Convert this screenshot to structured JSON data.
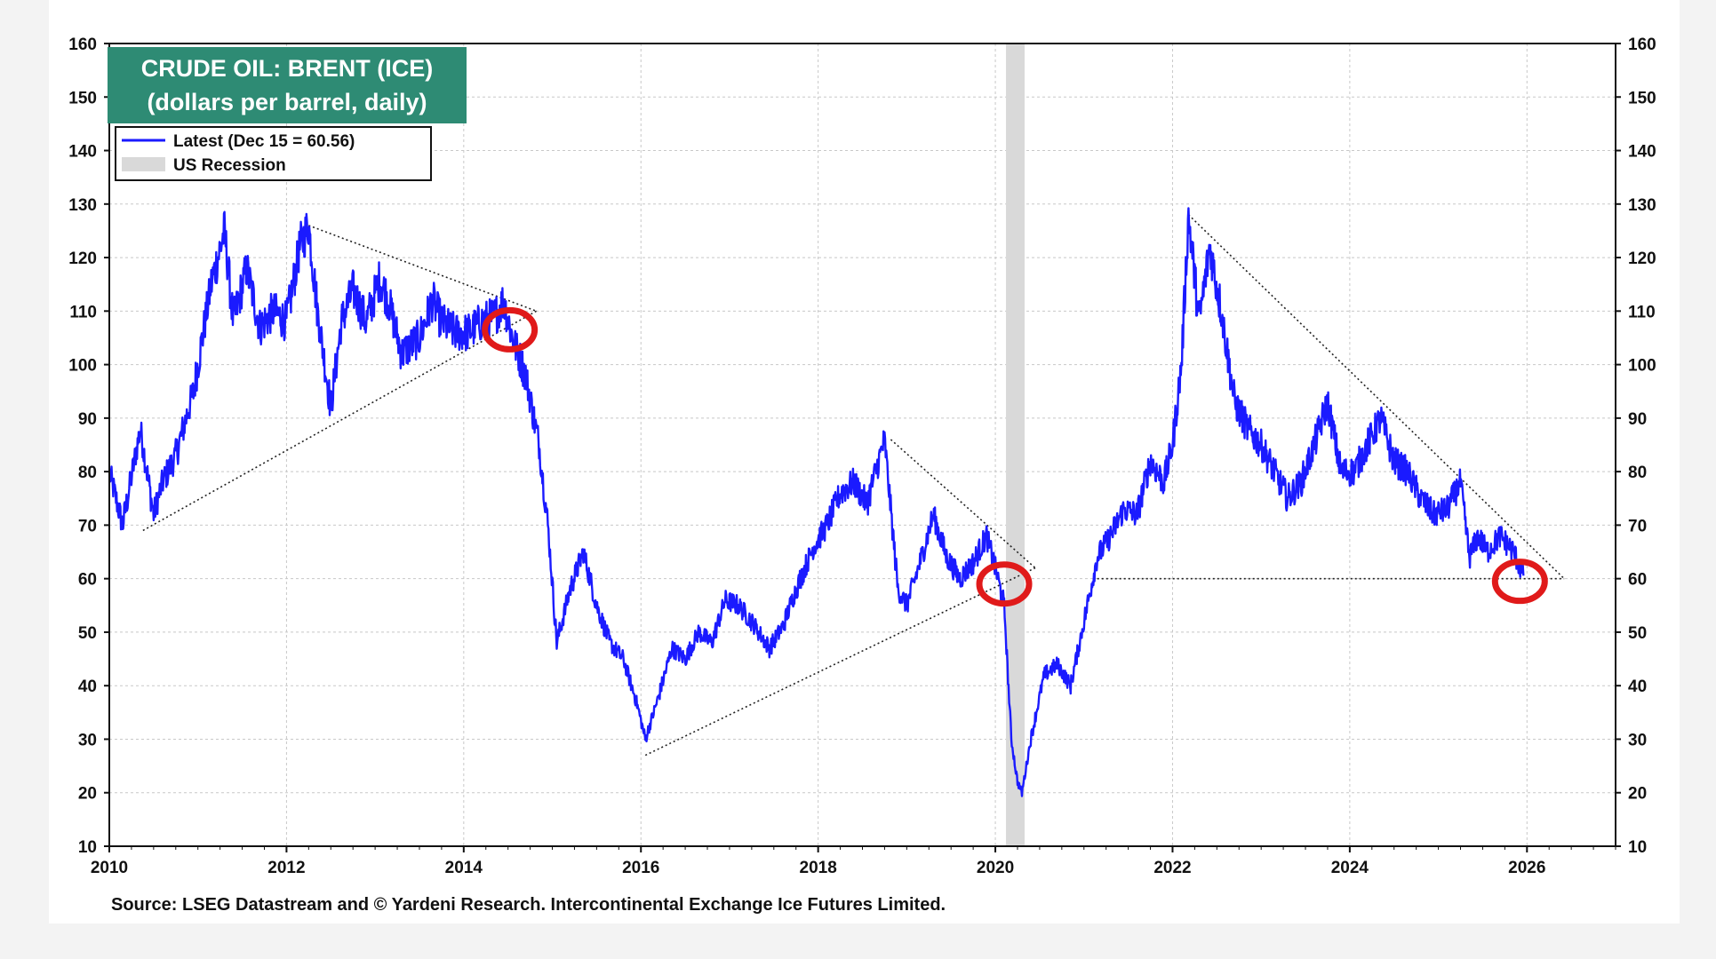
{
  "chart_data": {
    "type": "line",
    "title": "CRUDE OIL: BRENT (ICE)",
    "subtitle": "(dollars per barrel, daily)",
    "source": "Source: LSEG Datastream and © Yardeni Research. Intercontinental Exchange Ice Futures Limited.",
    "xlim": [
      2010,
      2027
    ],
    "ylim": [
      10,
      160
    ],
    "x_ticks": [
      "2010",
      "2012",
      "2014",
      "2016",
      "2018",
      "2020",
      "2022",
      "2024",
      "2026"
    ],
    "y_ticks": [
      "10",
      "20",
      "30",
      "40",
      "50",
      "60",
      "70",
      "80",
      "90",
      "100",
      "110",
      "120",
      "130",
      "140",
      "150",
      "160"
    ],
    "grid": true,
    "legend_position": "top-left",
    "legend": [
      {
        "label": "Latest (Dec 15 = 60.56)",
        "type": "line",
        "color": "#1a1aff"
      },
      {
        "label": "US Recession",
        "type": "band",
        "color": "#d9d9d9"
      }
    ],
    "title_box_color": "#2e8b74",
    "series": [
      {
        "name": "Latest (Dec 15 = 60.56)",
        "color": "#1a1aff",
        "x": [
          2010.0,
          2010.15,
          2010.35,
          2010.5,
          2010.6,
          2010.75,
          2010.95,
          2011.15,
          2011.3,
          2011.4,
          2011.55,
          2011.7,
          2011.85,
          2012.0,
          2012.15,
          2012.25,
          2012.35,
          2012.5,
          2012.62,
          2012.75,
          2012.9,
          2013.05,
          2013.15,
          2013.3,
          2013.5,
          2013.65,
          2013.75,
          2013.9,
          2014.05,
          2014.2,
          2014.35,
          2014.45,
          2014.55,
          2014.7,
          2014.85,
          2014.95,
          2015.05,
          2015.2,
          2015.35,
          2015.5,
          2015.65,
          2015.8,
          2015.95,
          2016.05,
          2016.2,
          2016.35,
          2016.5,
          2016.65,
          2016.8,
          2016.95,
          2017.1,
          2017.25,
          2017.45,
          2017.6,
          2017.75,
          2017.95,
          2018.1,
          2018.25,
          2018.4,
          2018.55,
          2018.75,
          2018.9,
          2019.0,
          2019.15,
          2019.3,
          2019.45,
          2019.6,
          2019.75,
          2019.9,
          2020.0,
          2020.1,
          2020.18,
          2020.25,
          2020.3,
          2020.4,
          2020.55,
          2020.7,
          2020.85,
          2021.0,
          2021.15,
          2021.3,
          2021.45,
          2021.6,
          2021.75,
          2021.9,
          2022.0,
          2022.1,
          2022.18,
          2022.3,
          2022.42,
          2022.55,
          2022.7,
          2022.85,
          2023.0,
          2023.15,
          2023.3,
          2023.45,
          2023.6,
          2023.75,
          2023.9,
          2024.05,
          2024.2,
          2024.35,
          2024.5,
          2024.65,
          2024.8,
          2024.95,
          2025.1,
          2025.25,
          2025.35,
          2025.45,
          2025.55,
          2025.7,
          2025.85,
          2025.96
        ],
        "y": [
          80,
          70,
          88,
          72,
          78,
          83,
          95,
          115,
          125,
          108,
          118,
          107,
          110,
          108,
          122,
          126,
          110,
          92,
          108,
          114,
          108,
          116,
          112,
          102,
          105,
          112,
          108,
          106,
          106,
          108,
          109,
          112,
          105,
          98,
          85,
          70,
          48,
          58,
          65,
          55,
          48,
          45,
          37,
          30,
          38,
          47,
          45,
          50,
          48,
          56,
          55,
          52,
          47,
          51,
          58,
          66,
          70,
          76,
          78,
          74,
          86,
          58,
          55,
          63,
          72,
          64,
          60,
          63,
          68,
          62,
          55,
          30,
          22,
          20,
          30,
          42,
          44,
          40,
          52,
          64,
          68,
          73,
          72,
          82,
          78,
          85,
          100,
          128,
          108,
          122,
          110,
          93,
          88,
          85,
          80,
          75,
          78,
          85,
          93,
          80,
          80,
          85,
          90,
          82,
          80,
          75,
          72,
          73,
          78,
          64,
          68,
          65,
          68,
          65,
          60.56
        ]
      }
    ],
    "recession": [
      2020.12,
      2020.33
    ],
    "trendlines": [
      {
        "x": [
          2010.38,
          2014.82
        ],
        "y": [
          69,
          110
        ]
      },
      {
        "x": [
          2012.25,
          2014.82
        ],
        "y": [
          126,
          110
        ]
      },
      {
        "x": [
          2016.05,
          2020.45
        ],
        "y": [
          27,
          62
        ]
      },
      {
        "x": [
          2018.82,
          2020.45
        ],
        "y": [
          86,
          62
        ]
      },
      {
        "x": [
          2022.18,
          2026.42
        ],
        "y": [
          128,
          60
        ]
      },
      {
        "x": [
          2021.1,
          2026.42
        ],
        "y": [
          60,
          60
        ]
      }
    ],
    "highlights": [
      {
        "x": 2014.52,
        "y": 106.5
      },
      {
        "x": 2020.1,
        "y": 59
      },
      {
        "x": 2025.92,
        "y": 59.5
      }
    ]
  }
}
